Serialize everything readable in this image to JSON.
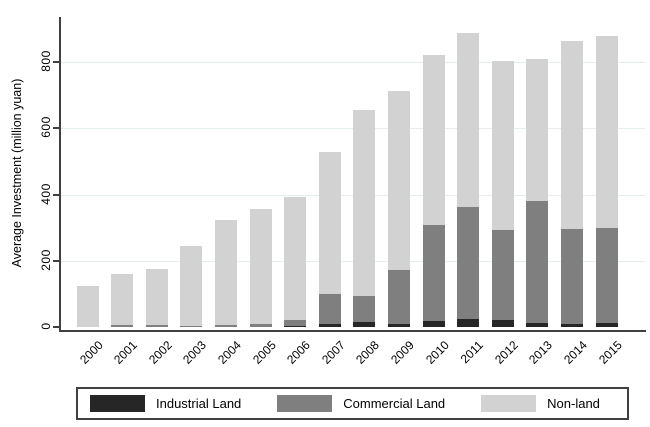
{
  "chart_data": {
    "type": "bar",
    "stacked": true,
    "title": "",
    "ylabel": "Average Investment (million yuan)",
    "xlabel": "",
    "ylim": [
      0,
      900
    ],
    "yticks": [
      0,
      200,
      400,
      600,
      800
    ],
    "grid": "horizontal, pale green-gray lines at y ticks",
    "legend_position": "bottom, boxed",
    "categories": [
      "2000",
      "2001",
      "2002",
      "2003",
      "2004",
      "2005",
      "2006",
      "2007",
      "2008",
      "2009",
      "2010",
      "2011",
      "2012",
      "2013",
      "2014",
      "2015"
    ],
    "series": [
      {
        "name": "Industrial Land",
        "color": "#262626",
        "values": [
          0,
          0,
          0,
          0,
          0,
          0,
          3,
          10,
          15,
          10,
          19,
          25,
          22,
          12,
          10,
          12
        ]
      },
      {
        "name": "Commercial Land",
        "color": "#7f7f7f",
        "values": [
          0,
          5,
          5,
          2,
          7,
          8,
          17,
          90,
          80,
          162,
          289,
          338,
          271,
          368,
          286,
          286
        ]
      },
      {
        "name": "Non-land",
        "color": "#d2d2d2",
        "values": [
          124,
          155,
          170,
          243,
          316,
          348,
          373,
          427,
          560,
          541,
          514,
          524,
          511,
          428,
          566,
          581
        ]
      }
    ],
    "totals": [
      124,
      160,
      175,
      245,
      323,
      356,
      393,
      527,
      655,
      713,
      822,
      887,
      804,
      808,
      862,
      879
    ]
  },
  "colors": {
    "axis": "#404040",
    "grid": "#e4efec",
    "background": "#ffffff",
    "industrial": "#262626",
    "commercial": "#7f7f7f",
    "nonland": "#d2d2d2"
  },
  "legend": {
    "items": [
      {
        "label": "Industrial Land",
        "color": "#262626"
      },
      {
        "label": "Commercial Land",
        "color": "#7f7f7f"
      },
      {
        "label": "Non-land",
        "color": "#d2d2d2"
      }
    ]
  },
  "axes": {
    "y_title": "Average Investment (million yuan)",
    "y_tick_labels": [
      "0",
      "200",
      "400",
      "600",
      "800"
    ],
    "x_tick_labels": [
      "2000",
      "2001",
      "2002",
      "2003",
      "2004",
      "2005",
      "2006",
      "2007",
      "2008",
      "2009",
      "2010",
      "2011",
      "2012",
      "2013",
      "2014",
      "2015"
    ]
  }
}
